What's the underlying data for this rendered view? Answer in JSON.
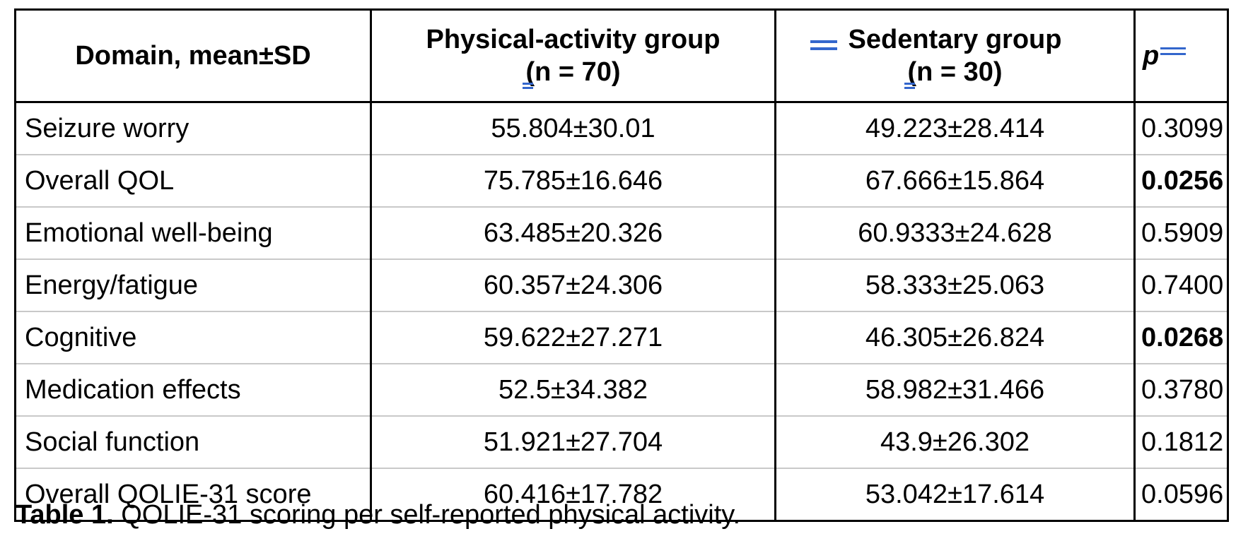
{
  "colors": {
    "revision_mark_blue": "#3366cc",
    "table_border": "#000000",
    "row_divider": "#c9c9c9"
  },
  "table": {
    "header": {
      "domain": "Domain, mean±SD",
      "pa_line1": "Physical-activity group",
      "pa_line2": "(n = 70)",
      "sed_line1": "Sedentary group",
      "sed_line2": "(n = 30)",
      "p": "p"
    },
    "rows": [
      {
        "domain": "Seizure worry",
        "pa": "55.804±30.01",
        "sed": "49.223±28.414",
        "p": "0.3099",
        "p_bold": false
      },
      {
        "domain": "Overall QOL",
        "pa": "75.785±16.646",
        "sed": "67.666±15.864",
        "p": "0.0256",
        "p_bold": true
      },
      {
        "domain": "Emotional well-being",
        "pa": "63.485±20.326",
        "sed": "60.9333±24.628",
        "p": "0.5909",
        "p_bold": false
      },
      {
        "domain": "Energy/fatigue",
        "pa": "60.357±24.306",
        "sed": "58.333±25.063",
        "p": "0.7400",
        "p_bold": false
      },
      {
        "domain": "Cognitive",
        "pa": "59.622±27.271",
        "sed": "46.305±26.824",
        "p": "0.0268",
        "p_bold": true
      },
      {
        "domain": "Medication effects",
        "pa": "52.5±34.382",
        "sed": "58.982±31.466",
        "p": "0.3780",
        "p_bold": false
      },
      {
        "domain": "Social function",
        "pa": "51.921±27.704",
        "sed": "43.9±26.302",
        "p": "0.1812",
        "p_bold": false
      },
      {
        "domain": "Overall QOLIE-31 score",
        "pa": "60.416±17.782",
        "sed": "53.042±17.614",
        "p": "0.0596",
        "p_bold": false
      }
    ]
  },
  "caption": {
    "label": "Table 1.",
    "text": "QOLIE-31 scoring per self-reported physical activity."
  }
}
